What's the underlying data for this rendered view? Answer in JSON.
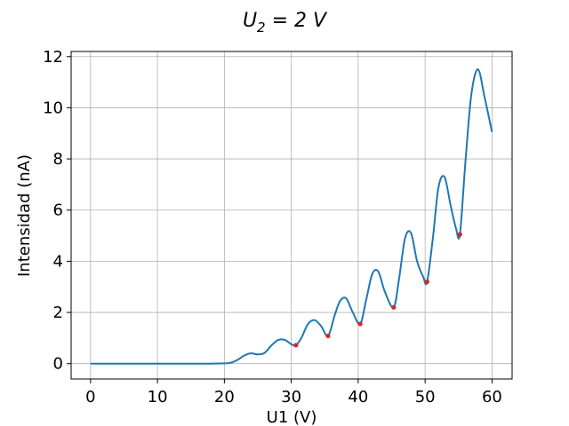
{
  "chart_data": {
    "type": "line",
    "title": {
      "prefix": "U",
      "subscript": "2",
      "suffix": " = 2 V"
    },
    "xlabel": "U1 (V)",
    "ylabel": "Intensidad (nA)",
    "xlim": [
      -2.9,
      63
    ],
    "ylim": [
      -0.6,
      12.2
    ],
    "xticks": [
      0,
      10,
      20,
      30,
      40,
      50,
      60
    ],
    "yticks": [
      0,
      2,
      4,
      6,
      8,
      10,
      12
    ],
    "grid": true,
    "line_color": "#1f77b4",
    "marker_color": "#d62728",
    "series": [
      {
        "name": "Intensidad",
        "x": [
          0,
          5,
          10,
          15,
          18,
          20,
          21,
          22,
          23,
          24,
          25,
          26,
          27,
          28,
          29,
          30,
          30.7,
          31.5,
          32.5,
          33.5,
          34.5,
          35.5,
          36.5,
          37.3,
          38.2,
          39.2,
          40.3,
          41.2,
          42.1,
          43.0,
          44.0,
          45.3,
          46.1,
          47.0,
          47.9,
          48.8,
          49.7,
          50.3,
          51.2,
          52.0,
          52.9,
          53.8,
          54.6,
          55.2,
          56.0,
          56.9,
          57.9,
          58.9,
          60.0
        ],
        "y": [
          0,
          0,
          0,
          0,
          0,
          0.01,
          0.04,
          0.15,
          0.32,
          0.4,
          0.36,
          0.42,
          0.7,
          0.92,
          0.93,
          0.76,
          0.72,
          1.0,
          1.55,
          1.7,
          1.45,
          1.08,
          1.9,
          2.45,
          2.55,
          2.0,
          1.55,
          2.5,
          3.5,
          3.6,
          2.8,
          2.2,
          3.3,
          4.9,
          5.1,
          4.0,
          3.4,
          3.2,
          5.0,
          6.9,
          7.3,
          6.2,
          5.3,
          5.05,
          7.8,
          10.5,
          11.5,
          10.4,
          9.05
        ]
      }
    ],
    "minima": {
      "x": [
        30.7,
        35.5,
        40.3,
        45.3,
        50.3,
        55.2
      ],
      "y": [
        0.72,
        1.08,
        1.55,
        2.2,
        3.2,
        5.05
      ]
    }
  }
}
